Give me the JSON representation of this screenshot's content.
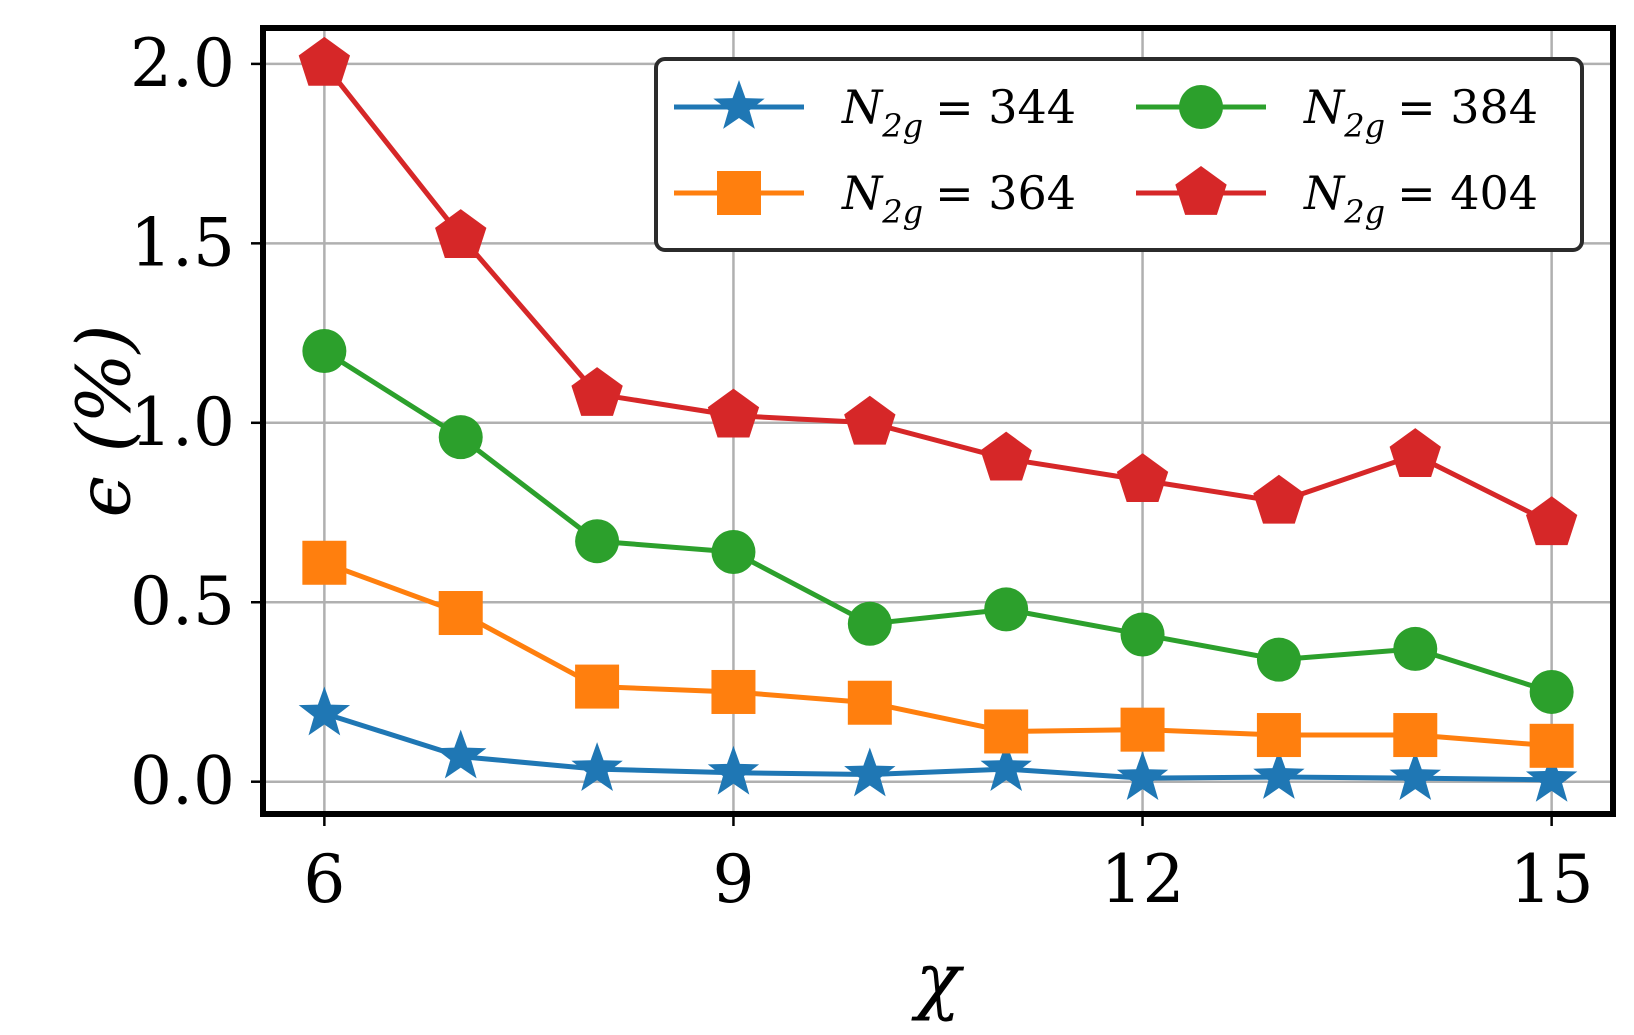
{
  "chart_data": {
    "type": "line",
    "title": "",
    "xlabel": "χ",
    "ylabel": "ϵ (%)",
    "x": [
      6,
      7,
      8,
      9,
      10,
      11,
      12,
      13,
      14,
      15
    ],
    "xticks": [
      6,
      9,
      12,
      15
    ],
    "xtick_labels": [
      "6",
      "9",
      "12",
      "15"
    ],
    "yticks": [
      0.0,
      0.5,
      1.0,
      1.5,
      2.0
    ],
    "ytick_labels": [
      "0.0",
      "0.5",
      "1.0",
      "1.5",
      "2.0"
    ],
    "xlim": [
      5.55,
      15.45
    ],
    "ylim": [
      -0.09,
      2.1
    ],
    "grid": true,
    "legend_position": "top-right",
    "legend_columns": 2,
    "series": [
      {
        "name": "N_2g = 344",
        "legend_symbol": "N",
        "legend_subscript": "2g",
        "legend_value": "= 344",
        "color": "#1f77b4",
        "marker": "star",
        "values": [
          0.19,
          0.07,
          0.035,
          0.025,
          0.02,
          0.035,
          0.01,
          0.013,
          0.01,
          0.005
        ]
      },
      {
        "name": "N_2g = 364",
        "legend_symbol": "N",
        "legend_subscript": "2g",
        "legend_value": "= 364",
        "color": "#ff7f0e",
        "marker": "square",
        "values": [
          0.61,
          0.47,
          0.265,
          0.25,
          0.22,
          0.14,
          0.145,
          0.13,
          0.13,
          0.1
        ]
      },
      {
        "name": "N_2g = 384",
        "legend_symbol": "N",
        "legend_subscript": "2g",
        "legend_value": "= 384",
        "color": "#2ca02c",
        "marker": "circle",
        "values": [
          1.2,
          0.96,
          0.67,
          0.64,
          0.44,
          0.48,
          0.41,
          0.34,
          0.37,
          0.25
        ]
      },
      {
        "name": "N_2g = 404",
        "legend_symbol": "N",
        "legend_subscript": "2g",
        "legend_value": "= 404",
        "color": "#d62728",
        "marker": "pentagon",
        "values": [
          2.0,
          1.52,
          1.08,
          1.02,
          1.0,
          0.9,
          0.84,
          0.78,
          0.91,
          0.72
        ]
      }
    ]
  }
}
